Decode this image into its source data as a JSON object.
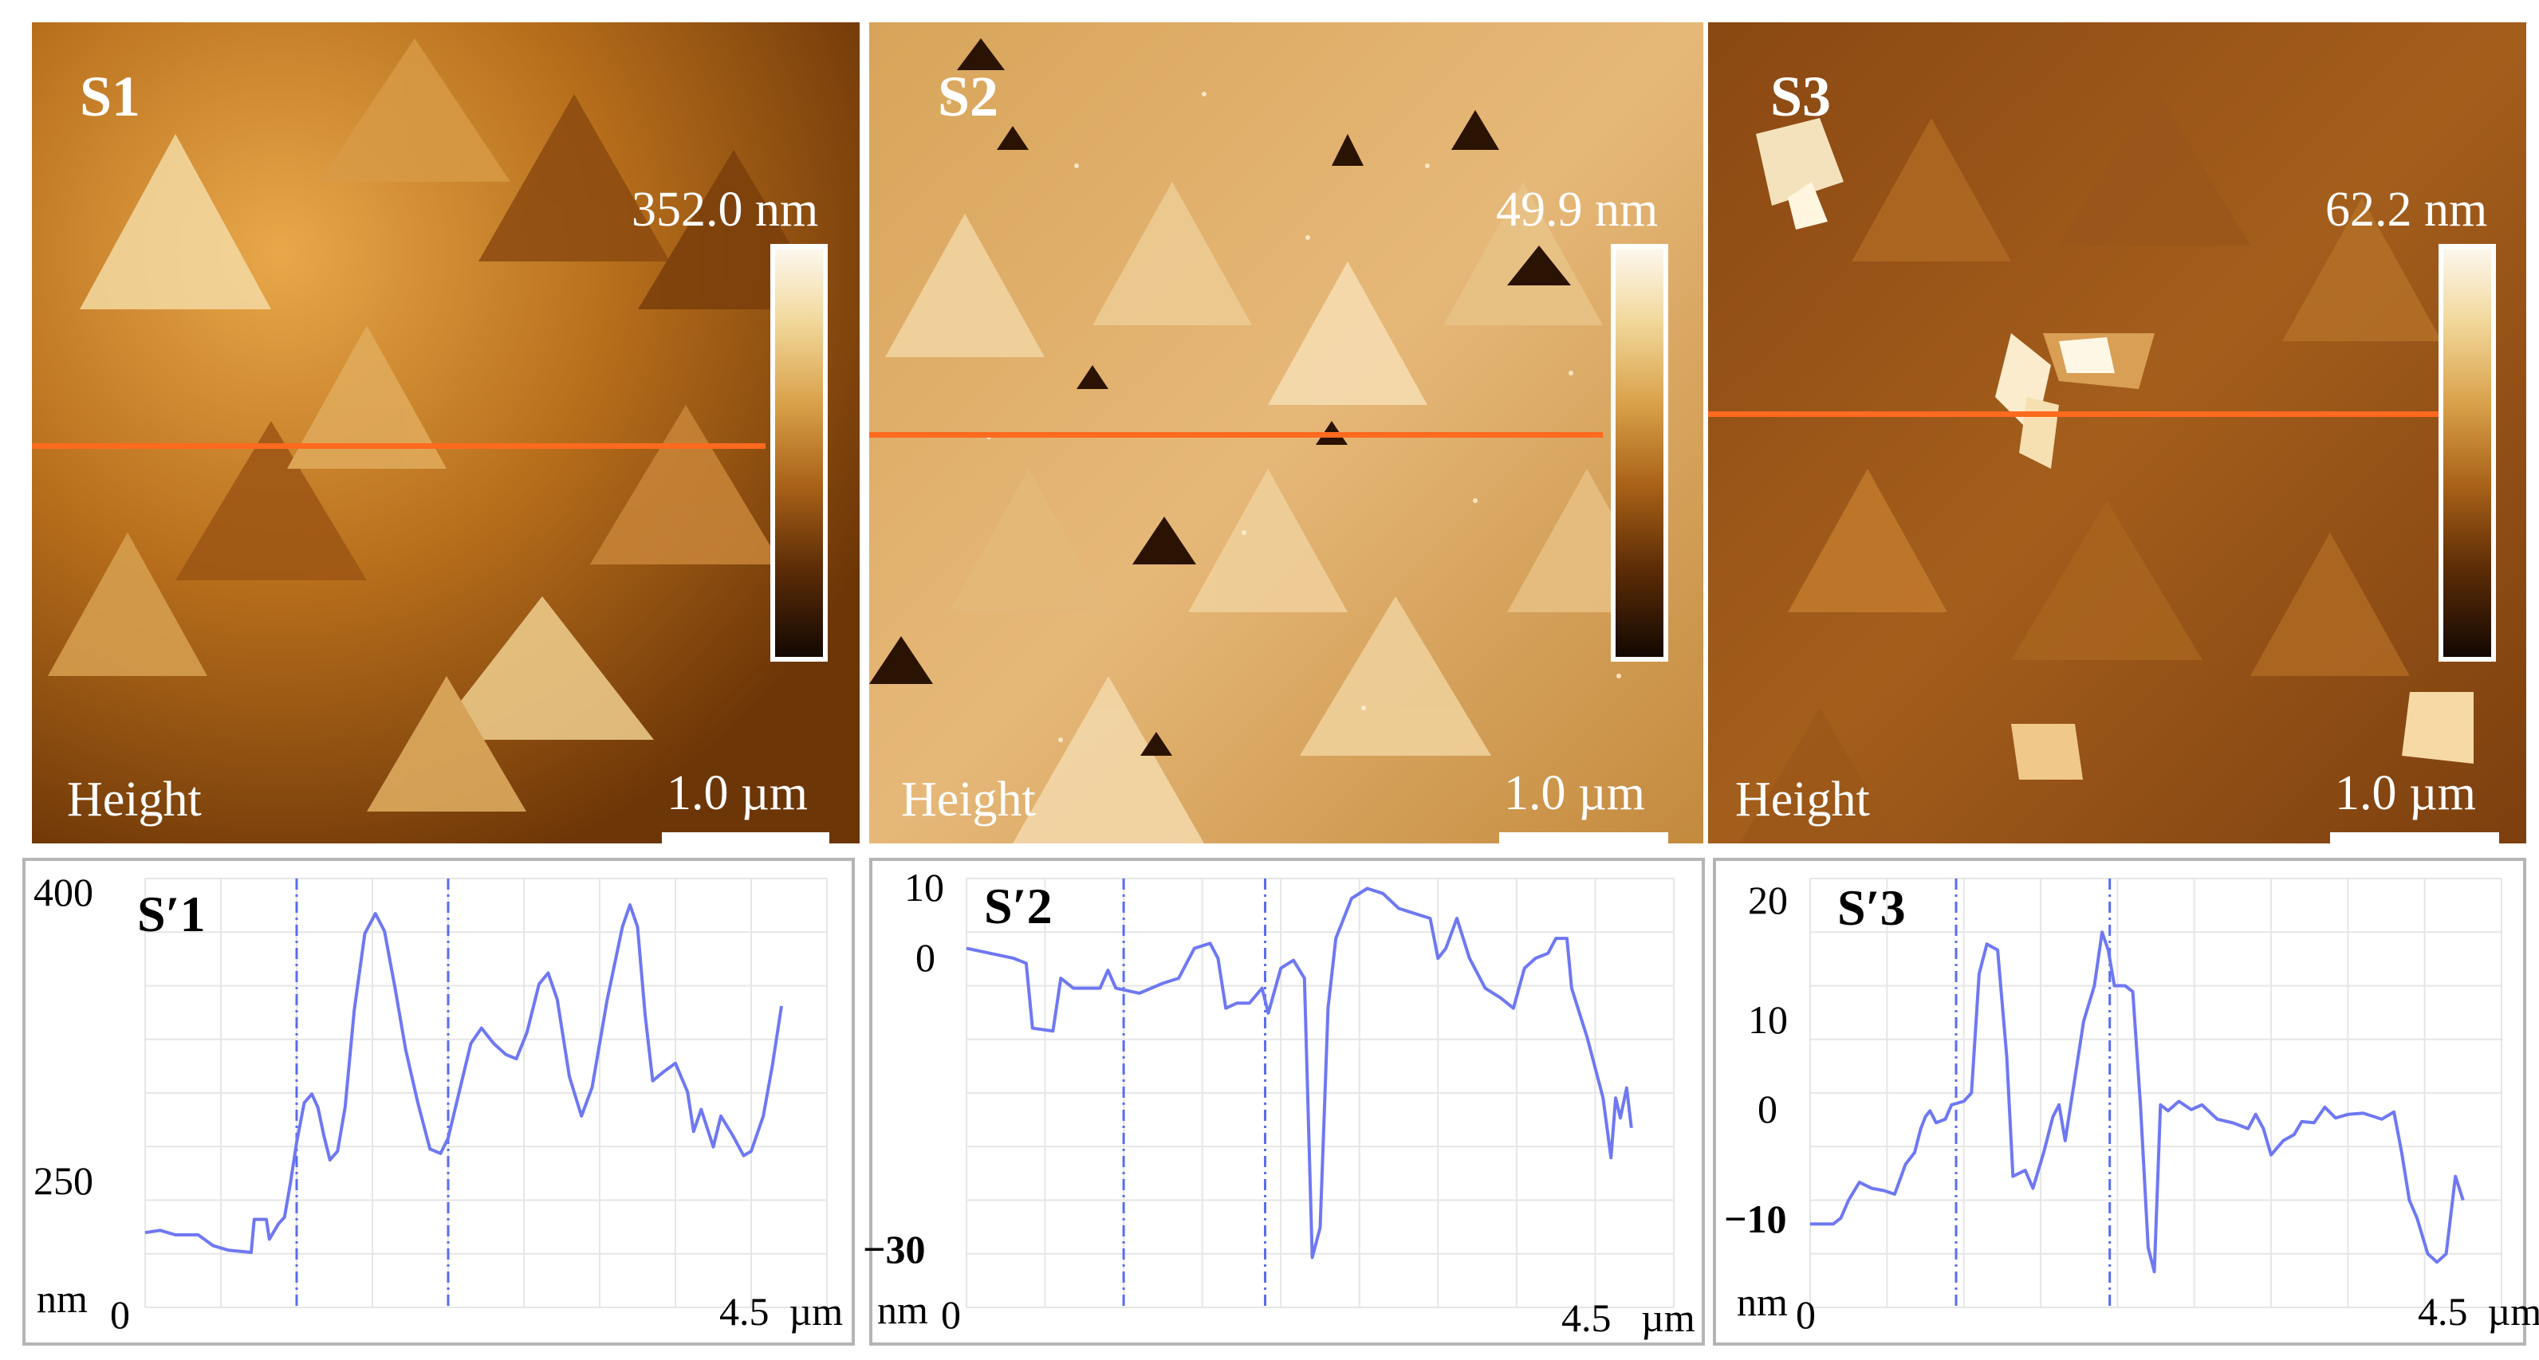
{
  "afm_images": [
    {
      "sample": "S1",
      "max_height": "352.0 nm",
      "channel": "Height",
      "scale": "1.0 µm",
      "profile_position": 0.52
    },
    {
      "sample": "S2",
      "max_height": "49.9 nm",
      "channel": "Height",
      "scale": "1.0 µm",
      "profile_position": 0.505
    },
    {
      "sample": "S3",
      "max_height": "62.2 nm",
      "channel": "Height",
      "scale": "1.0 µm",
      "profile_position": 0.475
    }
  ],
  "profiles": [
    {
      "name": "S′1",
      "unit": "nm",
      "y_ticks": [
        "400",
        "250"
      ],
      "x_start": "0",
      "x_end": "4.5",
      "x_unit": "µm",
      "xlim": [
        0,
        4.5
      ],
      "ylim": [
        205,
        400
      ],
      "markers": [
        1.0,
        2.0
      ],
      "points": [
        [
          0,
          239
        ],
        [
          0.1,
          240
        ],
        [
          0.2,
          238
        ],
        [
          0.35,
          238
        ],
        [
          0.45,
          233
        ],
        [
          0.55,
          231
        ],
        [
          0.7,
          230
        ],
        [
          0.72,
          245
        ],
        [
          0.8,
          245
        ],
        [
          0.82,
          236
        ],
        [
          0.88,
          243
        ],
        [
          0.92,
          246
        ],
        [
          0.96,
          262
        ],
        [
          1.0,
          280
        ],
        [
          1.05,
          298
        ],
        [
          1.1,
          302
        ],
        [
          1.14,
          296
        ],
        [
          1.18,
          283
        ],
        [
          1.22,
          272
        ],
        [
          1.27,
          276
        ],
        [
          1.32,
          296
        ],
        [
          1.38,
          340
        ],
        [
          1.45,
          375
        ],
        [
          1.52,
          384
        ],
        [
          1.58,
          376
        ],
        [
          1.65,
          350
        ],
        [
          1.72,
          322
        ],
        [
          1.8,
          298
        ],
        [
          1.88,
          277
        ],
        [
          1.95,
          275
        ],
        [
          2.0,
          282
        ],
        [
          2.08,
          305
        ],
        [
          2.15,
          325
        ],
        [
          2.22,
          332
        ],
        [
          2.3,
          325
        ],
        [
          2.38,
          320
        ],
        [
          2.45,
          318
        ],
        [
          2.52,
          330
        ],
        [
          2.6,
          352
        ],
        [
          2.66,
          357
        ],
        [
          2.72,
          345
        ],
        [
          2.8,
          310
        ],
        [
          2.88,
          292
        ],
        [
          2.95,
          305
        ],
        [
          3.05,
          345
        ],
        [
          3.15,
          378
        ],
        [
          3.2,
          388
        ],
        [
          3.25,
          378
        ],
        [
          3.3,
          338
        ],
        [
          3.35,
          308
        ],
        [
          3.42,
          312
        ],
        [
          3.5,
          316
        ],
        [
          3.58,
          303
        ],
        [
          3.62,
          285
        ],
        [
          3.67,
          295
        ],
        [
          3.75,
          278
        ],
        [
          3.8,
          292
        ],
        [
          3.88,
          283
        ],
        [
          3.95,
          274
        ],
        [
          4.0,
          276
        ],
        [
          4.08,
          292
        ],
        [
          4.14,
          315
        ],
        [
          4.2,
          342
        ]
      ]
    },
    {
      "name": "S′2",
      "unit": "nm",
      "y_ticks": [
        "10",
        "0",
        "−30"
      ],
      "x_start": "0",
      "x_end": "4.5",
      "x_unit": "µm",
      "xlim": [
        0,
        4.5
      ],
      "ylim": [
        -33,
        10
      ],
      "markers": [
        1.0,
        1.9
      ],
      "points": [
        [
          0,
          3
        ],
        [
          0.15,
          2.5
        ],
        [
          0.3,
          2
        ],
        [
          0.38,
          1.5
        ],
        [
          0.42,
          -5
        ],
        [
          0.55,
          -5.3
        ],
        [
          0.6,
          0
        ],
        [
          0.68,
          -1
        ],
        [
          0.85,
          -1
        ],
        [
          0.9,
          0.8
        ],
        [
          0.95,
          -1
        ],
        [
          1.1,
          -1.5
        ],
        [
          1.25,
          -0.5
        ],
        [
          1.35,
          0
        ],
        [
          1.45,
          3
        ],
        [
          1.55,
          3.5
        ],
        [
          1.6,
          2
        ],
        [
          1.65,
          -3
        ],
        [
          1.72,
          -2.5
        ],
        [
          1.8,
          -2.5
        ],
        [
          1.88,
          -1
        ],
        [
          1.92,
          -3.5
        ],
        [
          2.0,
          1
        ],
        [
          2.08,
          1.8
        ],
        [
          2.15,
          0
        ],
        [
          2.2,
          -28
        ],
        [
          2.25,
          -25
        ],
        [
          2.28,
          -12
        ],
        [
          2.3,
          -3
        ],
        [
          2.35,
          4
        ],
        [
          2.45,
          8
        ],
        [
          2.55,
          9
        ],
        [
          2.65,
          8.5
        ],
        [
          2.75,
          7
        ],
        [
          2.85,
          6.5
        ],
        [
          2.95,
          6
        ],
        [
          3.0,
          2
        ],
        [
          3.05,
          3
        ],
        [
          3.12,
          6
        ],
        [
          3.2,
          2
        ],
        [
          3.3,
          -1
        ],
        [
          3.4,
          -2
        ],
        [
          3.48,
          -3
        ],
        [
          3.55,
          1
        ],
        [
          3.62,
          2
        ],
        [
          3.7,
          2.5
        ],
        [
          3.75,
          4
        ],
        [
          3.82,
          4
        ],
        [
          3.85,
          -1
        ],
        [
          3.95,
          -6
        ],
        [
          4.05,
          -12
        ],
        [
          4.1,
          -18
        ],
        [
          4.13,
          -12
        ],
        [
          4.16,
          -14
        ],
        [
          4.2,
          -11
        ],
        [
          4.23,
          -15
        ]
      ]
    },
    {
      "name": "S′3",
      "unit": "nm",
      "y_ticks": [
        "20",
        "10",
        "0",
        "−10"
      ],
      "x_start": "0",
      "x_end": "4.5",
      "x_unit": "µm",
      "xlim": [
        0,
        4.5
      ],
      "ylim": [
        -15,
        21
      ],
      "markers": [
        0.95,
        1.95
      ],
      "points": [
        [
          0,
          -8
        ],
        [
          0.15,
          -8
        ],
        [
          0.2,
          -7.5
        ],
        [
          0.25,
          -6
        ],
        [
          0.32,
          -4.5
        ],
        [
          0.4,
          -5
        ],
        [
          0.48,
          -5.2
        ],
        [
          0.55,
          -5.5
        ],
        [
          0.62,
          -3
        ],
        [
          0.68,
          -2
        ],
        [
          0.72,
          0
        ],
        [
          0.75,
          1
        ],
        [
          0.78,
          1.5
        ],
        [
          0.82,
          0.5
        ],
        [
          0.88,
          0.8
        ],
        [
          0.92,
          2
        ],
        [
          1.0,
          2.3
        ],
        [
          1.05,
          3
        ],
        [
          1.1,
          13
        ],
        [
          1.15,
          15.5
        ],
        [
          1.22,
          15
        ],
        [
          1.28,
          6
        ],
        [
          1.32,
          -4
        ],
        [
          1.4,
          -3.5
        ],
        [
          1.45,
          -5
        ],
        [
          1.52,
          -2
        ],
        [
          1.58,
          1
        ],
        [
          1.62,
          2
        ],
        [
          1.66,
          -1
        ],
        [
          1.72,
          4
        ],
        [
          1.78,
          9
        ],
        [
          1.85,
          12
        ],
        [
          1.9,
          16.5
        ],
        [
          1.94,
          15
        ],
        [
          1.98,
          12
        ],
        [
          2.05,
          12
        ],
        [
          2.1,
          11.5
        ],
        [
          2.15,
          2
        ],
        [
          2.2,
          -10
        ],
        [
          2.24,
          -12
        ],
        [
          2.28,
          2
        ],
        [
          2.33,
          1.5
        ],
        [
          2.4,
          2.3
        ],
        [
          2.48,
          1.6
        ],
        [
          2.55,
          2
        ],
        [
          2.65,
          0.8
        ],
        [
          2.75,
          0.5
        ],
        [
          2.85,
          0
        ],
        [
          2.9,
          1.2
        ],
        [
          2.95,
          0
        ],
        [
          3.0,
          -2.2
        ],
        [
          3.08,
          -1
        ],
        [
          3.15,
          -0.5
        ],
        [
          3.2,
          0.6
        ],
        [
          3.28,
          0.5
        ],
        [
          3.35,
          1.8
        ],
        [
          3.42,
          0.9
        ],
        [
          3.5,
          1.2
        ],
        [
          3.6,
          1.3
        ],
        [
          3.72,
          0.8
        ],
        [
          3.8,
          1.4
        ],
        [
          3.85,
          -2
        ],
        [
          3.9,
          -6
        ],
        [
          3.95,
          -7.5
        ],
        [
          4.02,
          -10.5
        ],
        [
          4.08,
          -11.2
        ],
        [
          4.14,
          -10.5
        ],
        [
          4.2,
          -4
        ],
        [
          4.25,
          -6
        ]
      ]
    }
  ]
}
